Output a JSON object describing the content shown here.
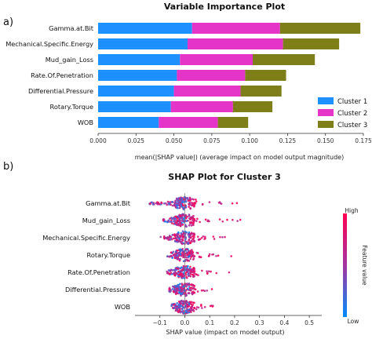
{
  "panel_a_label": "a)",
  "panel_b_label": "b)",
  "chart_data": [
    {
      "type": "bar",
      "title": "Variable Importance Plot",
      "xlabel": "mean(|SHAP value|) (average impact on model output magnitude)",
      "xlim": [
        0,
        0.175
      ],
      "xticks": [
        "0.000",
        "0.025",
        "0.050",
        "0.075",
        "0.100",
        "0.125",
        "0.150",
        "0.175"
      ],
      "categories": [
        "Gamma.at.Bit",
        "Mechanical.Specific.Energy",
        "Mud_gain_Loss",
        "Rate.Of.Penetration",
        "Differential.Pressure",
        "Rotary.Torque",
        "WOB"
      ],
      "stacked": true,
      "orientation": "horizontal",
      "legend_position": "right",
      "series": [
        {
          "name": "Cluster 1",
          "color": "#1e90ff",
          "values": [
            0.062,
            0.059,
            0.054,
            0.052,
            0.05,
            0.048,
            0.04
          ]
        },
        {
          "name": "Cluster 2",
          "color": "#e535c8",
          "values": [
            0.058,
            0.063,
            0.048,
            0.045,
            0.044,
            0.041,
            0.039
          ]
        },
        {
          "name": "Cluster 3",
          "color": "#7f7f1a",
          "values": [
            0.053,
            0.037,
            0.041,
            0.027,
            0.027,
            0.026,
            0.02
          ]
        }
      ]
    },
    {
      "type": "scatter",
      "subtype": "beeswarm",
      "title": "SHAP Plot for Cluster 3",
      "xlabel": "SHAP value (impact on model output)",
      "xlim": [
        -0.2,
        0.55
      ],
      "xticks": [
        "−0.1",
        "0.0",
        "0.1",
        "0.2",
        "0.3",
        "0.4",
        "0.5"
      ],
      "features": [
        "Gamma.at.Bit",
        "Mud_gain_Loss",
        "Mechanical.Specific.Energy",
        "Rotary.Torque",
        "Rate.Of.Penetration",
        "Differential.Pressure",
        "WOB"
      ],
      "ranges": [
        [
          -0.16,
          0.3
        ],
        [
          -0.1,
          0.31
        ],
        [
          -0.11,
          0.24
        ],
        [
          -0.08,
          0.22
        ],
        [
          -0.08,
          0.19
        ],
        [
          -0.07,
          0.18
        ],
        [
          -0.06,
          0.18
        ]
      ],
      "colorbar": {
        "label": "Feature value",
        "high": "High",
        "low": "Low",
        "high_color": "#ff0052",
        "low_color": "#008bfb"
      }
    }
  ]
}
